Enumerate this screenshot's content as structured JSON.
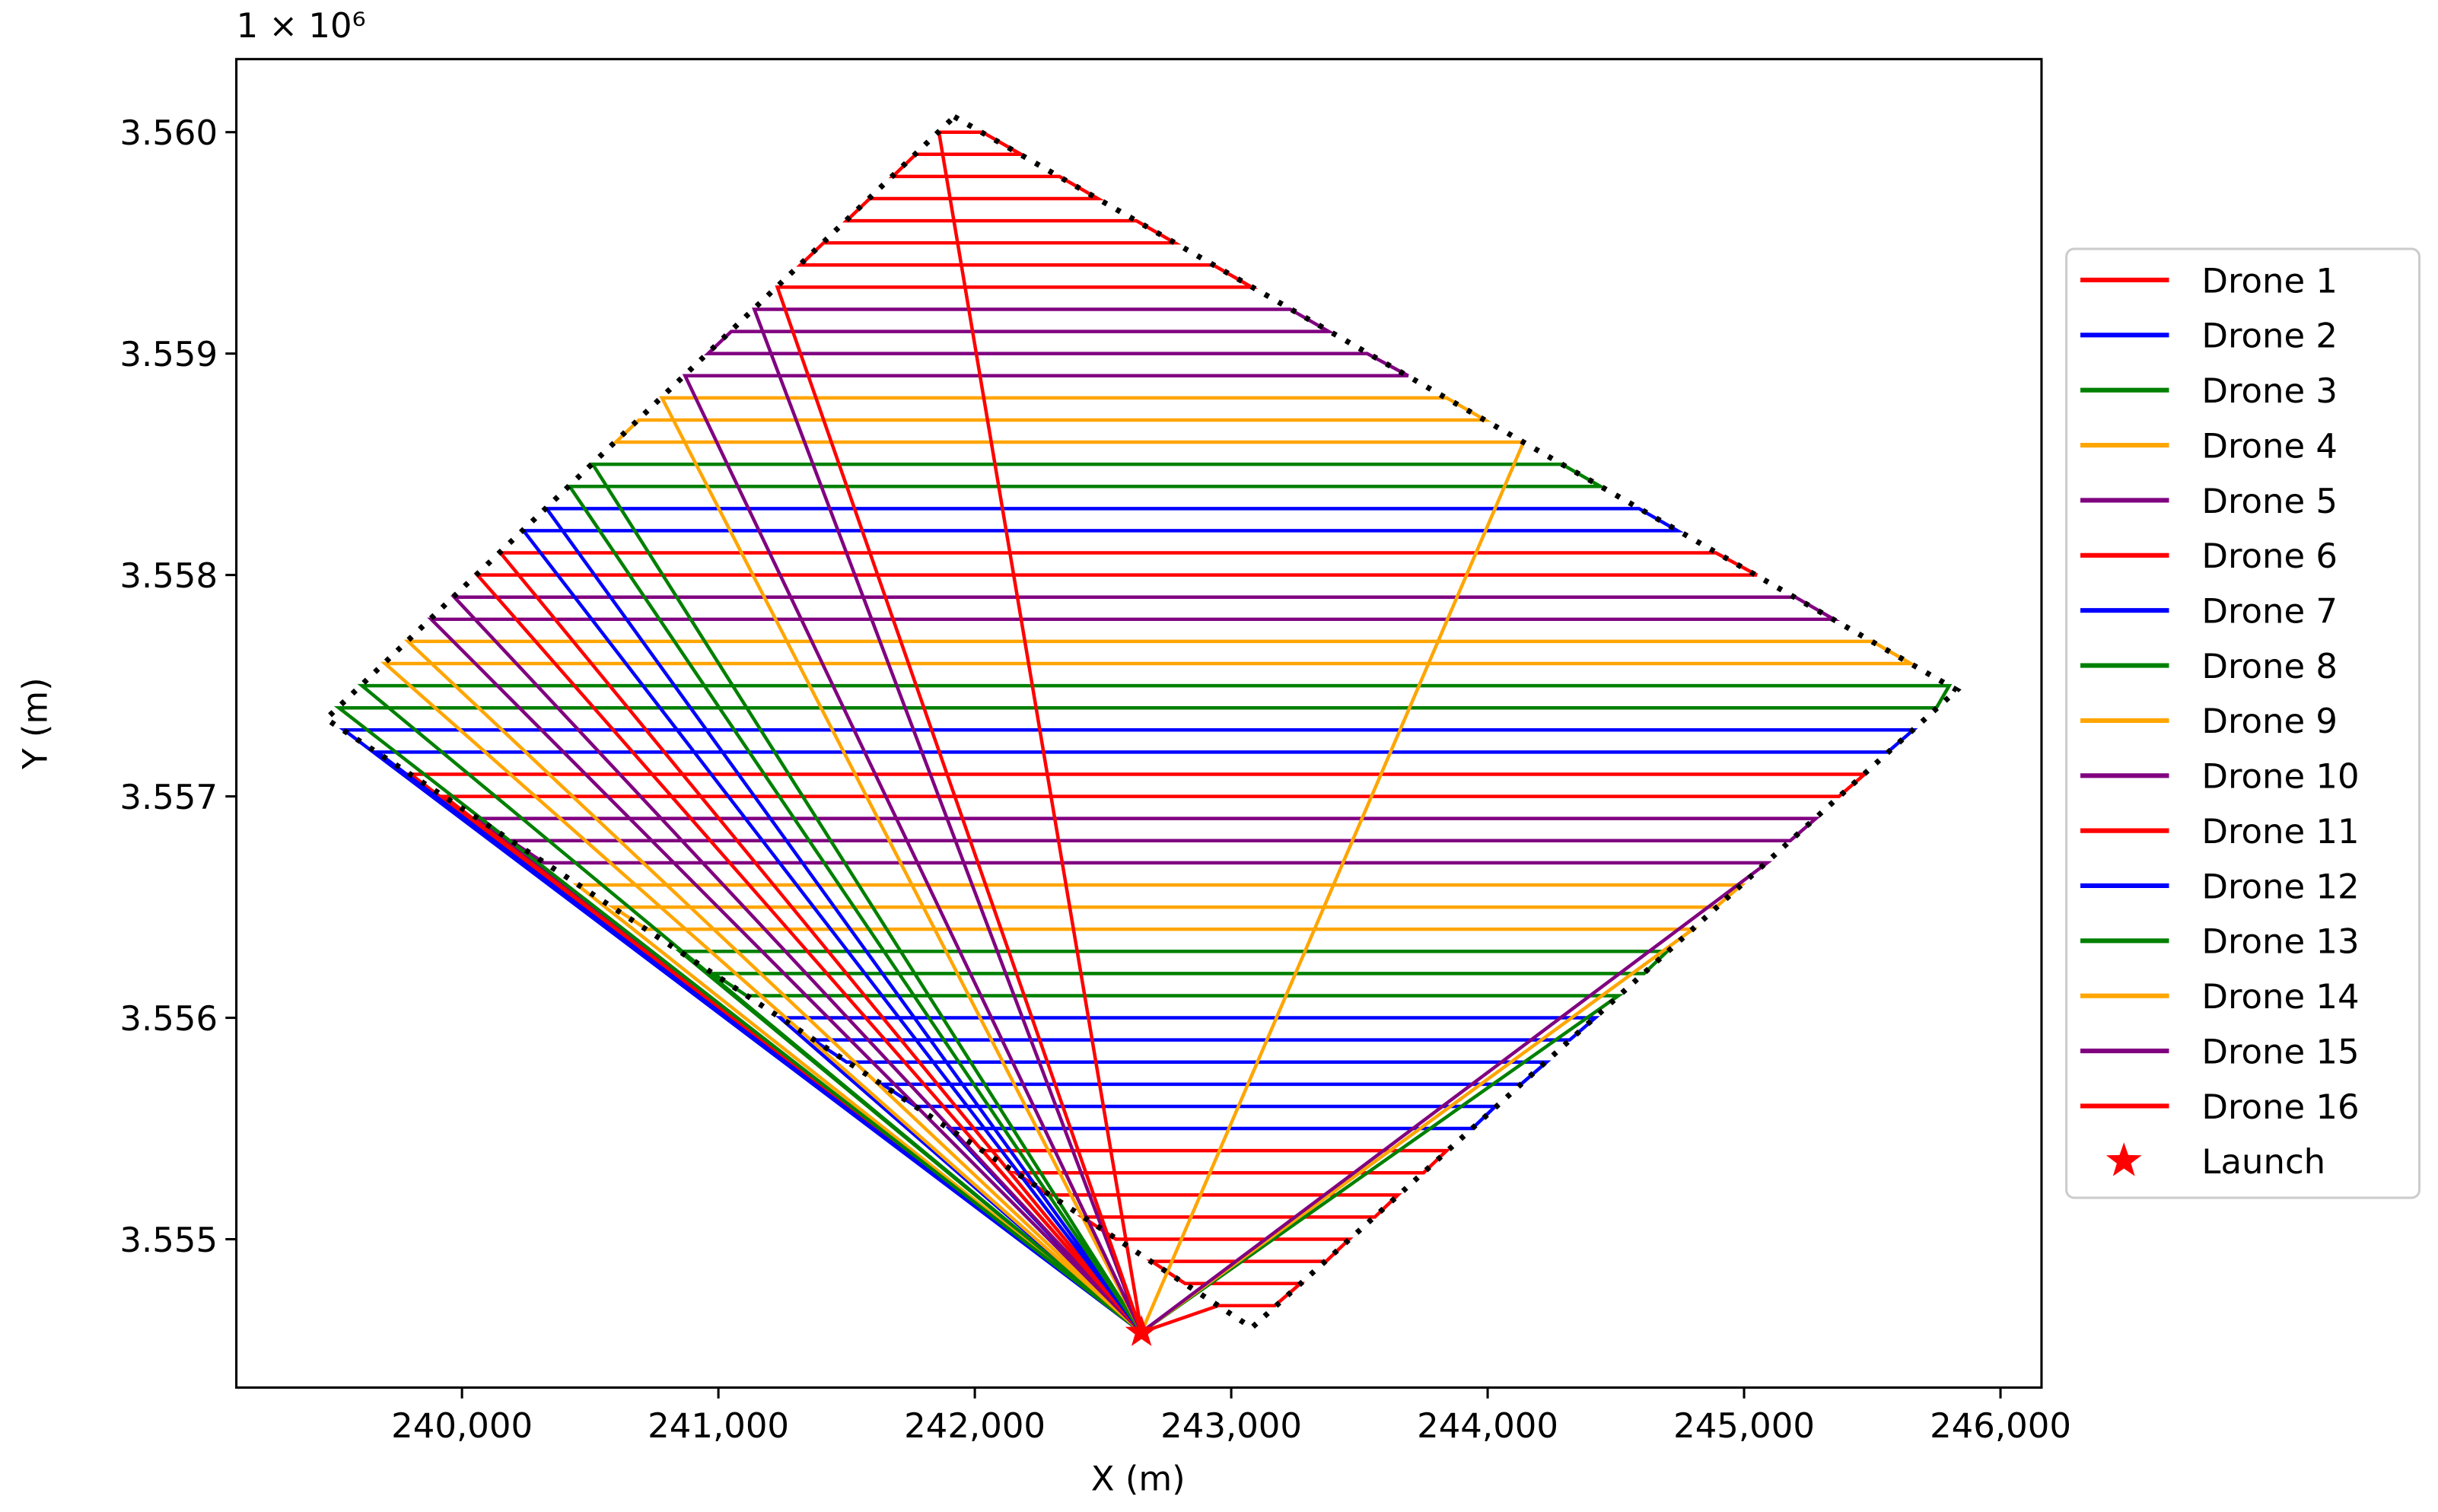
{
  "chart_data": {
    "type": "line",
    "x_label": "X (m)",
    "y_label": "Y (m)",
    "y_offset_label": "1 × 10⁶",
    "xlim": [
      239120,
      246160
    ],
    "ylim": [
      3554330,
      3560330
    ],
    "xticks": [
      {
        "value": 240000,
        "label": "240,000"
      },
      {
        "value": 241000,
        "label": "241,000"
      },
      {
        "value": 242000,
        "label": "242,000"
      },
      {
        "value": 243000,
        "label": "243,000"
      },
      {
        "value": 244000,
        "label": "244,000"
      },
      {
        "value": 245000,
        "label": "245,000"
      },
      {
        "value": 246000,
        "label": "246,000"
      }
    ],
    "yticks": [
      {
        "value": 3555000,
        "label": "3.555"
      },
      {
        "value": 3556000,
        "label": "3.556"
      },
      {
        "value": 3557000,
        "label": "3.557"
      },
      {
        "value": 3558000,
        "label": "3.558"
      },
      {
        "value": 3559000,
        "label": "3.559"
      },
      {
        "value": 3560000,
        "label": "3.560"
      }
    ],
    "legend_position": "outside-right",
    "boundary": {
      "color": "#000000",
      "x": [
        241920,
        245830,
        243080,
        239470,
        241920
      ],
      "y": [
        3560070,
        3557480,
        3554600,
        3557350,
        3560070
      ]
    },
    "series": [
      {
        "name": "Drone 1",
        "color": "#ff0000",
        "x": [
          242650,
          242030,
          243840,
          243750,
          242160,
          242290,
          243650,
          243560,
          242420,
          242550,
          243460,
          243370,
          242690,
          242820,
          243270,
          243170,
          242950,
          242650
        ],
        "y": [
          3554580,
          3555400,
          3555400,
          3555300,
          3555300,
          3555200,
          3555200,
          3555100,
          3555100,
          3555000,
          3555000,
          3554900,
          3554900,
          3554800,
          3554800,
          3554700,
          3554700,
          3554580
        ]
      },
      {
        "name": "Drone 2",
        "color": "#0000ff",
        "x": [
          242650,
          241240,
          244420,
          244320,
          241370,
          241500,
          244230,
          244130,
          241640,
          241770,
          244030,
          243940,
          241900,
          242650
        ],
        "y": [
          3554580,
          3556000,
          3556000,
          3555900,
          3555900,
          3555800,
          3555800,
          3555700,
          3555700,
          3555600,
          3555600,
          3555500,
          3555500,
          3554580
        ]
      },
      {
        "name": "Drone 3",
        "color": "#008000",
        "x": [
          242650,
          240850,
          244700,
          244610,
          240980,
          241110,
          244510,
          242650
        ],
        "y": [
          3554580,
          3556300,
          3556300,
          3556200,
          3556200,
          3556100,
          3556100,
          3554580
        ]
      },
      {
        "name": "Drone 4",
        "color": "#ffa500",
        "x": [
          242650,
          240450,
          244990,
          244890,
          240590,
          240720,
          244800,
          242650
        ],
        "y": [
          3554580,
          3556600,
          3556600,
          3556500,
          3556500,
          3556400,
          3556400,
          3554580
        ]
      },
      {
        "name": "Drone 5",
        "color": "#800080",
        "x": [
          242650,
          240060,
          245280,
          245180,
          240190,
          240320,
          245090,
          242650
        ],
        "y": [
          3554580,
          3556900,
          3556900,
          3556800,
          3556800,
          3556700,
          3556700,
          3554580
        ]
      },
      {
        "name": "Drone 6",
        "color": "#ff0000",
        "x": [
          242650,
          239800,
          245470,
          245370,
          239930,
          242650
        ],
        "y": [
          3554580,
          3557100,
          3557100,
          3557000,
          3557000,
          3554580
        ]
      },
      {
        "name": "Drone 7",
        "color": "#0000ff",
        "x": [
          242650,
          239540,
          245660,
          245560,
          239670,
          242650
        ],
        "y": [
          3554580,
          3557300,
          3557300,
          3557200,
          3557200,
          3554580
        ]
      },
      {
        "name": "Drone 8",
        "color": "#008000",
        "x": [
          242650,
          239610,
          245800,
          245750,
          239520,
          242650
        ],
        "y": [
          3554580,
          3557500,
          3557500,
          3557400,
          3557400,
          3554580
        ]
      },
      {
        "name": "Drone 9",
        "color": "#ffa500",
        "x": [
          242650,
          239790,
          245500,
          245650,
          239700,
          242650
        ],
        "y": [
          3554580,
          3557700,
          3557700,
          3557600,
          3557600,
          3554580
        ]
      },
      {
        "name": "Drone 10",
        "color": "#800080",
        "x": [
          242650,
          239970,
          245200,
          245350,
          239880,
          242650
        ],
        "y": [
          3554580,
          3557900,
          3557900,
          3557800,
          3557800,
          3554580
        ]
      },
      {
        "name": "Drone 11",
        "color": "#ff0000",
        "x": [
          242650,
          240150,
          244890,
          245050,
          240060,
          242650
        ],
        "y": [
          3554580,
          3558100,
          3558100,
          3558000,
          3558000,
          3554580
        ]
      },
      {
        "name": "Drone 12",
        "color": "#0000ff",
        "x": [
          242650,
          240330,
          244590,
          244740,
          240240,
          242650
        ],
        "y": [
          3554580,
          3558300,
          3558300,
          3558200,
          3558200,
          3554580
        ]
      },
      {
        "name": "Drone 13",
        "color": "#008000",
        "x": [
          242650,
          240510,
          244290,
          244440,
          240420,
          242650
        ],
        "y": [
          3554580,
          3558500,
          3558500,
          3558400,
          3558400,
          3554580
        ]
      },
      {
        "name": "Drone 14",
        "color": "#ffa500",
        "x": [
          242650,
          240780,
          243840,
          243990,
          240690,
          240600,
          244140,
          242650
        ],
        "y": [
          3554580,
          3558800,
          3558800,
          3558700,
          3558700,
          3558600,
          3558600,
          3554580
        ]
      },
      {
        "name": "Drone 15",
        "color": "#800080",
        "x": [
          242650,
          241140,
          243230,
          243380,
          241050,
          240960,
          243530,
          243690,
          240870,
          242650
        ],
        "y": [
          3554580,
          3559200,
          3559200,
          3559100,
          3559100,
          3559000,
          3559000,
          3558900,
          3558900,
          3554580
        ]
      },
      {
        "name": "Drone 16",
        "color": "#ff0000",
        "x": [
          242650,
          241860,
          242030,
          242180,
          241770,
          241680,
          242330,
          242480,
          241590,
          241500,
          242630,
          242780,
          241410,
          241320,
          242930,
          243080,
          241230,
          242650
        ],
        "y": [
          3554580,
          3560000,
          3560000,
          3559900,
          3559900,
          3559800,
          3559800,
          3559700,
          3559700,
          3559600,
          3559600,
          3559500,
          3559500,
          3559400,
          3559400,
          3559300,
          3559300,
          3554580
        ]
      }
    ],
    "launch": {
      "name": "Launch",
      "color": "#ff0000",
      "x": 242650,
      "y": 3554580
    }
  }
}
